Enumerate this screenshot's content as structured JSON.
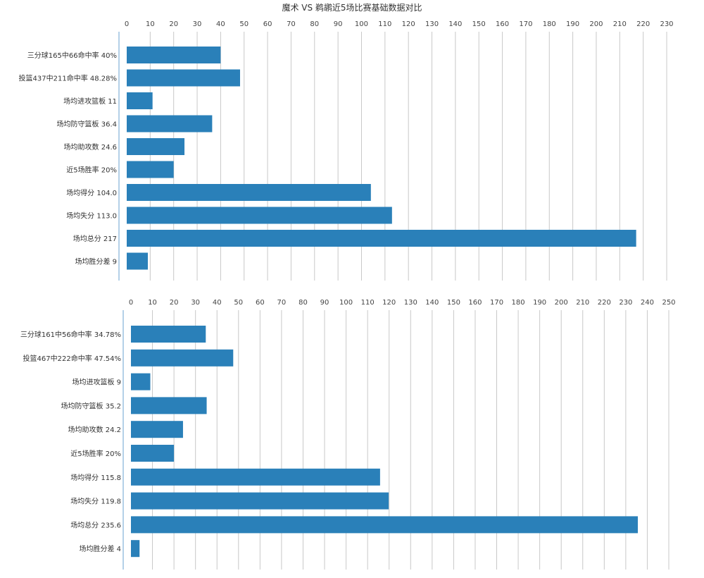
{
  "title": "魔术 VS 鹈鹕近5场比赛基础数据对比",
  "colors": {
    "bar": "#2a80b9",
    "grid": "#c8c8c8",
    "axis": "#6aa0d0"
  },
  "chart_data": [
    {
      "type": "bar",
      "orientation": "horizontal",
      "categories": [
        "三分球165中66命中率 40%",
        "投篮437中211命中率 48.28%",
        "场均进攻篮板 11",
        "场均防守篮板 36.4",
        "场均助攻数 24.6",
        "近5场胜率 20%",
        "场均得分 104.0",
        "场均失分 113.0",
        "场均总分 217",
        "场均胜分差 9"
      ],
      "values": [
        40,
        48.28,
        11,
        36.4,
        24.6,
        20,
        104.0,
        113.0,
        217,
        9
      ],
      "xlim": [
        0,
        230
      ],
      "ticks": [
        "0",
        "10",
        "20",
        "30",
        "40",
        "50",
        "60",
        "70",
        "80",
        "90",
        "100",
        "110",
        "120",
        "130",
        "140",
        "150",
        "160",
        "170",
        "180",
        "190",
        "200",
        "210",
        "220",
        "230"
      ],
      "grid": true
    },
    {
      "type": "bar",
      "orientation": "horizontal",
      "categories": [
        "三分球161中56命中率 34.78%",
        "投篮467中222命中率 47.54%",
        "场均进攻篮板 9",
        "场均防守篮板 35.2",
        "场均助攻数 24.2",
        "近5场胜率 20%",
        "场均得分 115.8",
        "场均失分 119.8",
        "场均总分 235.6",
        "场均胜分差 4"
      ],
      "values": [
        34.78,
        47.54,
        9,
        35.2,
        24.2,
        20,
        115.8,
        119.8,
        235.6,
        4
      ],
      "xlim": [
        0,
        250
      ],
      "ticks": [
        "0",
        "10",
        "20",
        "30",
        "40",
        "50",
        "60",
        "70",
        "80",
        "90",
        "100",
        "110",
        "120",
        "130",
        "140",
        "150",
        "160",
        "170",
        "180",
        "190",
        "200",
        "210",
        "220",
        "230",
        "240",
        "250"
      ],
      "grid": true
    }
  ]
}
